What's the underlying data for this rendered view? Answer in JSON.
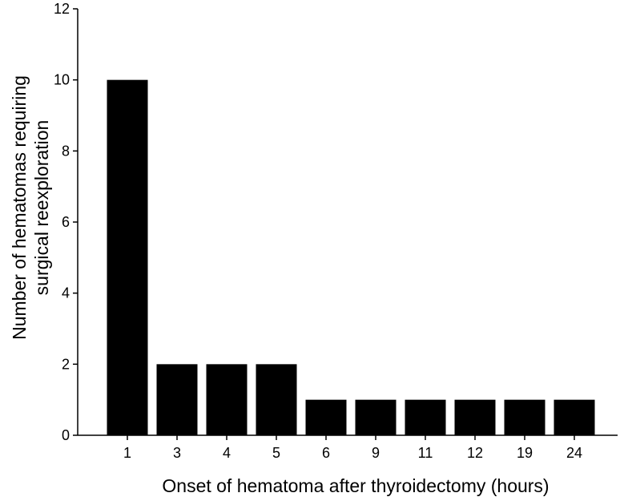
{
  "chart_data": {
    "type": "bar",
    "categories": [
      "1",
      "3",
      "4",
      "5",
      "6",
      "9",
      "11",
      "12",
      "19",
      "24"
    ],
    "values": [
      10,
      2,
      2,
      2,
      1,
      1,
      1,
      1,
      1,
      1
    ],
    "xlabel": "Onset of hematoma after thyroidectomy (hours)",
    "ylabel_lines": [
      "Number of hematomas requiring",
      "surgical reexploration"
    ],
    "ylim": [
      0,
      12
    ],
    "yticks": [
      0,
      2,
      4,
      6,
      8,
      10,
      12
    ],
    "bar_color": "#000000",
    "grid": false,
    "legend": "none"
  }
}
